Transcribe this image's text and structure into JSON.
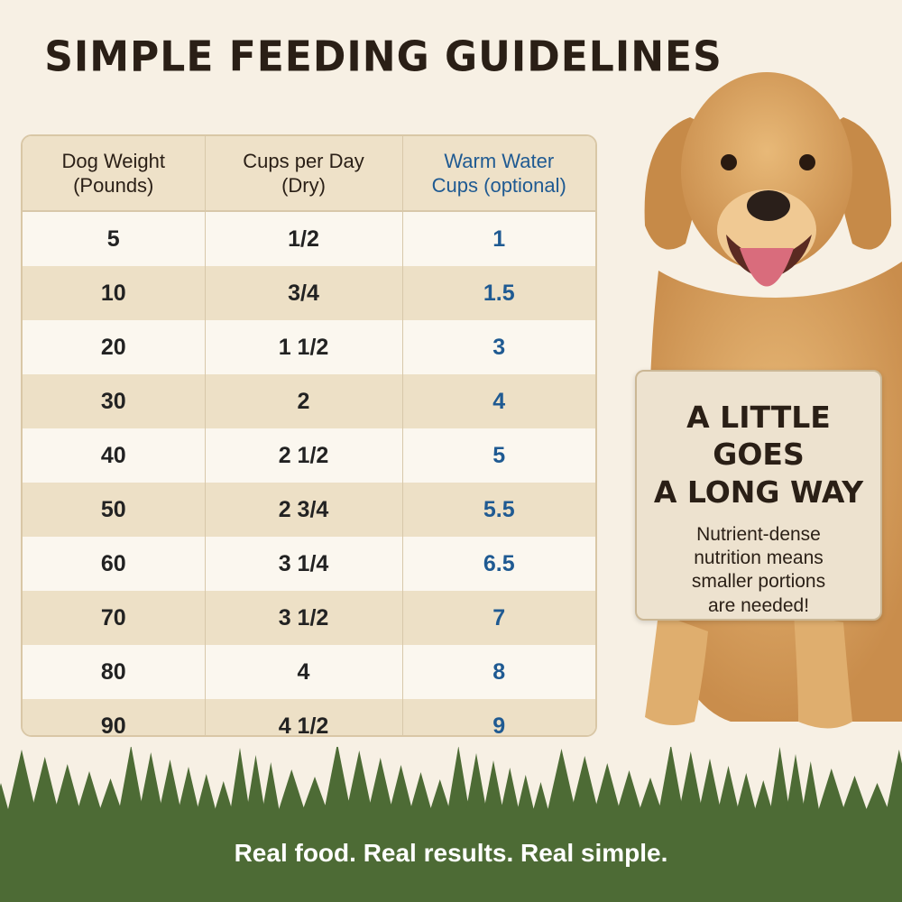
{
  "title": "SIMPLE FEEDING GUIDELINES",
  "table": {
    "headers": [
      {
        "line1": "Dog Weight",
        "line2": "(Pounds)"
      },
      {
        "line1": "Cups per Day",
        "line2": "(Dry)"
      },
      {
        "line1": "Warm Water",
        "line2": "Cups (optional)"
      }
    ],
    "rows": [
      [
        "5",
        "1/2",
        "1"
      ],
      [
        "10",
        "3/4",
        "1.5"
      ],
      [
        "20",
        "1 1/2",
        "3"
      ],
      [
        "30",
        "2",
        "4"
      ],
      [
        "40",
        "2 1/2",
        "5"
      ],
      [
        "50",
        "2 3/4",
        "5.5"
      ],
      [
        "60",
        "3 1/4",
        "6.5"
      ],
      [
        "70",
        "3 1/2",
        "7"
      ],
      [
        "80",
        "4",
        "8"
      ],
      [
        "90",
        "4 1/2",
        "9"
      ]
    ]
  },
  "callout": {
    "heading_line1": "A LITTLE GOES",
    "heading_line2": "A LONG WAY",
    "body_line1": "Nutrient-dense",
    "body_line2": "nutrition means",
    "body_line3": "smaller portions",
    "body_line4": "are needed!"
  },
  "tagline": "Real food. Real results. Real simple.",
  "colors": {
    "background": "#f7f0e4",
    "header_bg": "#eee1c8",
    "water_text": "#1f5a92",
    "forest": "#4d6b35"
  }
}
